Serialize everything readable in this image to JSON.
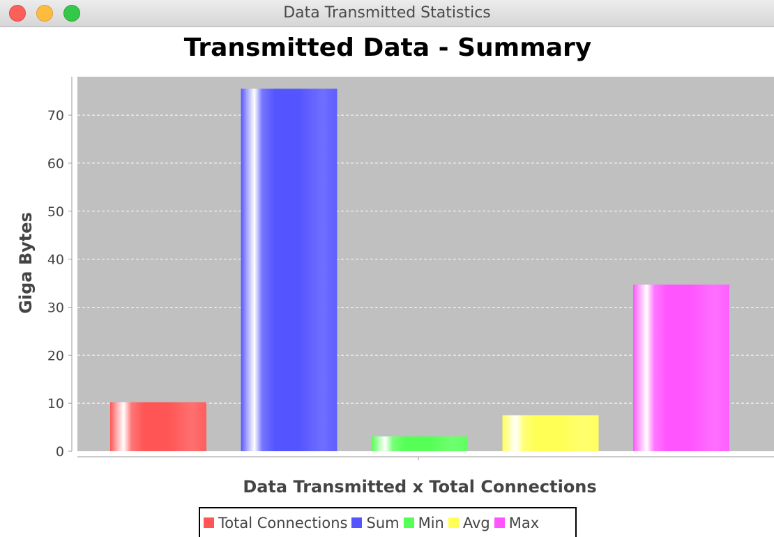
{
  "window": {
    "title": "Data Transmitted Statistics"
  },
  "chart_data": {
    "type": "bar",
    "title": "Transmitted Data - Summary",
    "xlabel": "Data Transmitted x Total Connections",
    "ylabel": "Giga Bytes",
    "ylim": [
      0,
      78
    ],
    "yticks": [
      0,
      10,
      20,
      30,
      40,
      50,
      60,
      70
    ],
    "grid": true,
    "legend_position": "bottom",
    "plot_background": "#c0c0c0",
    "series": [
      {
        "name": "Total Connections",
        "value": 10.2,
        "color": "#ff5555"
      },
      {
        "name": "Sum",
        "value": 75.5,
        "color": "#5555ff"
      },
      {
        "name": "Min",
        "value": 3.1,
        "color": "#55ff55"
      },
      {
        "name": "Avg",
        "value": 7.5,
        "color": "#ffff55"
      },
      {
        "name": "Max",
        "value": 34.7,
        "color": "#ff55ff"
      }
    ]
  }
}
